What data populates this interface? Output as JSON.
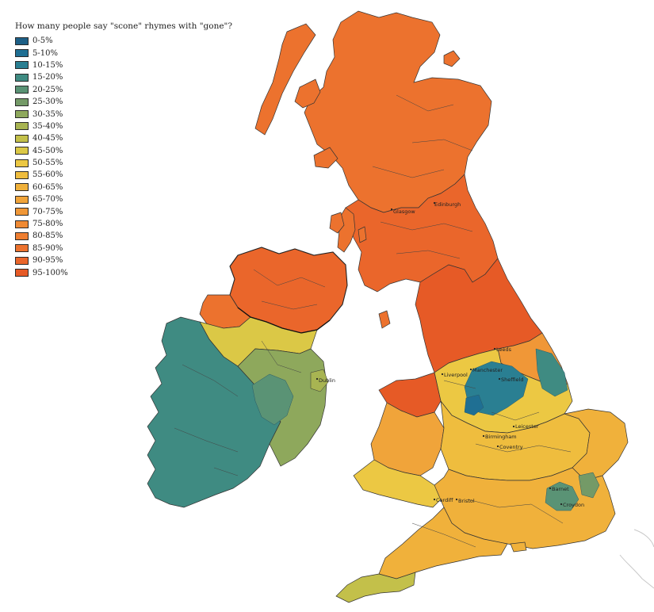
{
  "title": "How many people say \"scone\" rhymes with \"gone\"?",
  "legend": [
    {
      "label": "0-5%",
      "color": "#1d5f86"
    },
    {
      "label": "5-10%",
      "color": "#1f6f93"
    },
    {
      "label": "10-15%",
      "color": "#2a7f92"
    },
    {
      "label": "15-20%",
      "color": "#3f8b82"
    },
    {
      "label": "20-25%",
      "color": "#5a9375"
    },
    {
      "label": "25-30%",
      "color": "#749a67"
    },
    {
      "label": "30-35%",
      "color": "#8ea85c"
    },
    {
      "label": "35-40%",
      "color": "#a8b452"
    },
    {
      "label": "40-45%",
      "color": "#c3c04a"
    },
    {
      "label": "45-50%",
      "color": "#dbc846"
    },
    {
      "label": "50-55%",
      "color": "#ecc843"
    },
    {
      "label": "55-60%",
      "color": "#efbd3e"
    },
    {
      "label": "60-65%",
      "color": "#f0b13b"
    },
    {
      "label": "65-70%",
      "color": "#f0a43a"
    },
    {
      "label": "70-75%",
      "color": "#f09737"
    },
    {
      "label": "75-80%",
      "color": "#ef8a34"
    },
    {
      "label": "80-85%",
      "color": "#ee7e31"
    },
    {
      "label": "85-90%",
      "color": "#ec722e"
    },
    {
      "label": "90-95%",
      "color": "#ea662b"
    },
    {
      "label": "95-100%",
      "color": "#e65a26"
    }
  ],
  "cities": [
    "Glasgow",
    "Edinburgh",
    "Leeds",
    "Manchester",
    "Liverpool",
    "Sheffield",
    "Dublin",
    "Leicester",
    "Birmingham",
    "Coventry",
    "Cardiff",
    "Bristol",
    "Barnet",
    "Croydon"
  ]
}
